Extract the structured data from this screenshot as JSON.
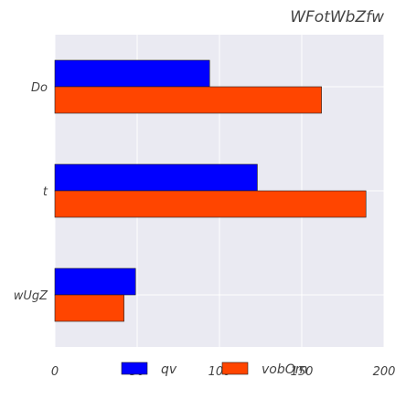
{
  "chart_data": {
    "type": "bar",
    "orientation": "horizontal",
    "title": "WFotWbZfw",
    "categories": [
      "Do",
      "t",
      "wUgZ"
    ],
    "series": [
      {
        "name": "qv",
        "color": "#0000ff",
        "values": [
          94,
          123,
          49
        ]
      },
      {
        "name": "vobOm",
        "color": "#ff4500",
        "values": [
          162,
          189,
          42
        ]
      }
    ],
    "xlim": [
      0,
      200
    ],
    "xticks": [
      "0",
      "50",
      "100",
      "150",
      "200"
    ],
    "grid": true,
    "legend_position": "bottom"
  }
}
